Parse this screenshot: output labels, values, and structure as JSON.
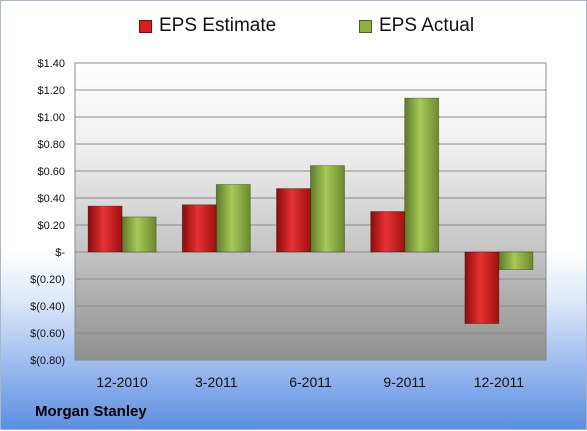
{
  "company": "Morgan Stanley",
  "colors": {
    "estimate": "#d81e1e",
    "actual": "#8fb040"
  },
  "chart_data": {
    "type": "bar",
    "categories": [
      "12-2010",
      "3-2011",
      "6-2011",
      "9-2011",
      "12-2011"
    ],
    "series": [
      {
        "name": "EPS Estimate",
        "values": [
          0.34,
          0.35,
          0.47,
          0.3,
          -0.53
        ]
      },
      {
        "name": "EPS Actual",
        "values": [
          0.26,
          0.5,
          0.64,
          1.14,
          -0.13
        ]
      }
    ],
    "yticks": [
      "$1.40",
      "$1.20",
      "$1.00",
      "$0.80",
      "$0.60",
      "$0.40",
      "$0.20",
      "$-",
      "$(0.20)",
      "$(0.40)",
      "$(0.60)",
      "$(0.80)"
    ],
    "ylim": [
      -0.8,
      1.4
    ],
    "grid": true,
    "legend": "top"
  }
}
